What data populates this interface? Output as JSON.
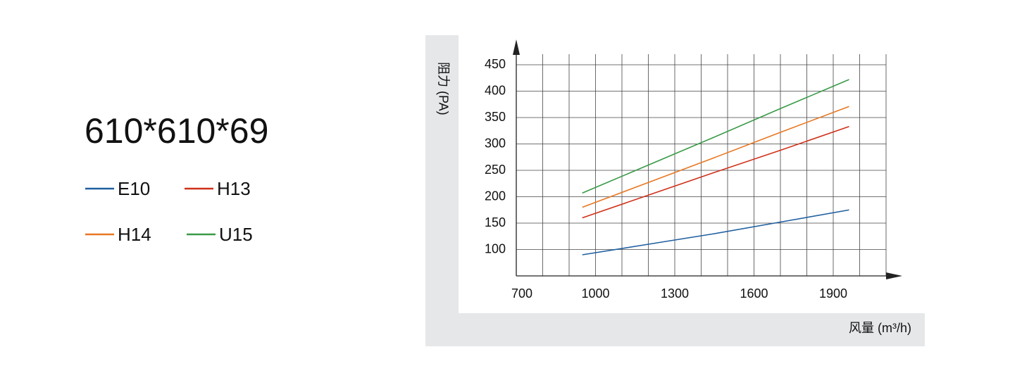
{
  "chart_data": {
    "type": "line",
    "title": "610*610*69",
    "x_label": "风量 (m³/h)",
    "y_label": "阻力 (PA)",
    "x": [
      950,
      1200,
      1450,
      1700,
      1960
    ],
    "series": [
      {
        "name": "E10",
        "color": "#1f5fa0",
        "values": [
          90,
          110,
          130,
          152,
          175
        ]
      },
      {
        "name": "H13",
        "color": "#d0301a",
        "values": [
          160,
          203,
          246,
          288,
          333
        ]
      },
      {
        "name": "H14",
        "color": "#e87722",
        "values": [
          180,
          227,
          274,
          322,
          371
        ]
      },
      {
        "name": "U15",
        "color": "#3a9a48",
        "values": [
          207,
          260,
          313,
          367,
          422
        ]
      }
    ],
    "xlim": [
      700,
      2100
    ],
    "ylim": [
      50,
      470
    ],
    "xticks": [
      700,
      1000,
      1300,
      1600,
      1900
    ],
    "xminor": [
      800,
      900,
      1100,
      1200,
      1400,
      1500,
      1700,
      1800,
      2000,
      2100
    ],
    "yticks": [
      100,
      150,
      200,
      250,
      300,
      350,
      400,
      450
    ],
    "grid": true
  }
}
